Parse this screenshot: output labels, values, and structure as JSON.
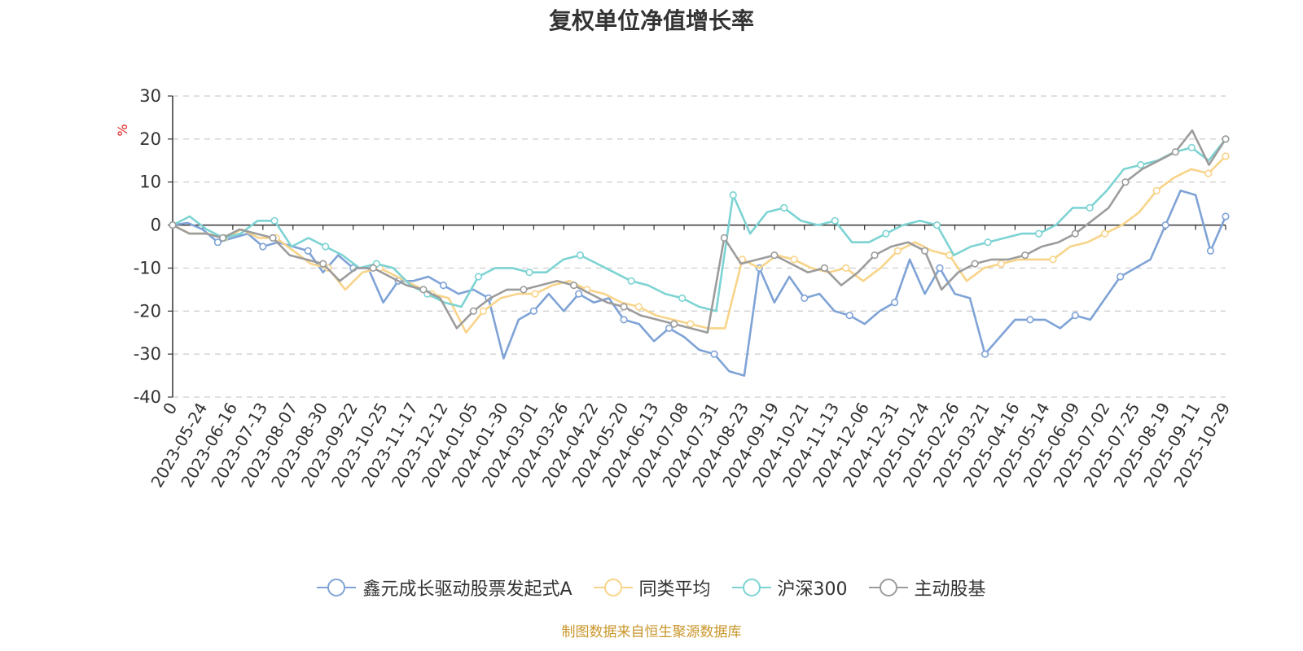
{
  "chart_data": {
    "type": "line",
    "title": "复权单位净值增长率",
    "ylabel": "%",
    "xlabel": "",
    "ylim": [
      -40,
      30
    ],
    "yticks": [
      "30",
      "20",
      "10",
      "0",
      "-10",
      "-20",
      "-30",
      "-40"
    ],
    "x_tick_labels": [
      "0",
      "2023-05-24",
      "2023-06-16",
      "2023-07-13",
      "2023-08-07",
      "2023-08-30",
      "2023-09-22",
      "2023-10-25",
      "2023-11-17",
      "2023-12-12",
      "2024-01-05",
      "2024-01-30",
      "2024-03-01",
      "2024-03-26",
      "2024-04-22",
      "2024-05-20",
      "2024-06-13",
      "2024-07-08",
      "2024-07-31",
      "2024-08-23",
      "2024-09-19",
      "2024-10-21",
      "2024-11-13",
      "2024-12-06",
      "2024-12-31",
      "2025-01-24",
      "2025-02-26",
      "2025-03-21",
      "2025-04-16",
      "2025-05-14",
      "2025-06-09",
      "2025-07-02",
      "2025-07-25",
      "2025-08-19",
      "2025-09-11",
      "2025-10-29"
    ],
    "grid": "horizontal-dashed",
    "legend_position": "bottom",
    "source": "制图数据来自恒生聚源数据库",
    "colors": {
      "axis": "#333333",
      "grid": "#cccccc",
      "ylabel": "#e02020",
      "source": "#c9962a"
    },
    "series": [
      {
        "name": "鑫元成长驱动股票发起式A",
        "color": "#7fa3d6",
        "values": [
          0,
          0.5,
          -1,
          -4,
          -3,
          -2,
          -5,
          -4,
          -5,
          -6,
          -11,
          -7,
          -10,
          -10,
          -18,
          -13,
          -13,
          -12,
          -14,
          -16,
          -15,
          -17,
          -31,
          -22,
          -20,
          -16,
          -20,
          -16,
          -18,
          -17,
          -22,
          -23,
          -27,
          -24,
          -26,
          -29,
          -30,
          -34,
          -35,
          -10,
          -18,
          -12,
          -17,
          -16,
          -20,
          -21,
          -23,
          -20,
          -18,
          -8,
          -16,
          -10,
          -16,
          -17,
          -30,
          -26,
          -22,
          -22,
          -22,
          -24,
          -21,
          -22,
          -17,
          -12,
          -10,
          -8,
          0,
          8,
          7,
          -6,
          2
        ]
      },
      {
        "name": "同类平均",
        "color": "#f8d48a",
        "values": [
          0,
          -2,
          -2,
          -3,
          -1,
          -3,
          -3,
          -6,
          -9,
          -10,
          -15,
          -11,
          -10,
          -12,
          -14,
          -16,
          -17,
          -25,
          -20,
          -17,
          -16,
          -16,
          -14,
          -13,
          -15,
          -16,
          -18,
          -19,
          -21,
          -22,
          -23,
          -24,
          -24,
          -8,
          -10,
          -7,
          -8,
          -10,
          -11,
          -10,
          -13,
          -10,
          -6,
          -4,
          -6,
          -7,
          -13,
          -10,
          -9,
          -8,
          -8,
          -8,
          -5,
          -4,
          -2,
          0,
          3,
          8,
          11,
          13,
          12,
          16
        ]
      },
      {
        "name": "沪深300",
        "color": "#7dd3d3",
        "values": [
          0,
          2,
          -1,
          -3,
          -2,
          1,
          1,
          -5,
          -3,
          -5,
          -7,
          -10,
          -9,
          -10,
          -14,
          -16,
          -18,
          -19,
          -12,
          -10,
          -10,
          -11,
          -11,
          -8,
          -7,
          -9,
          -11,
          -13,
          -14,
          -16,
          -17,
          -19,
          -20,
          7,
          -2,
          3,
          4,
          1,
          0,
          1,
          -4,
          -4,
          -2,
          0,
          1,
          0,
          -7,
          -5,
          -4,
          -3,
          -2,
          -2,
          0,
          4,
          4,
          8,
          13,
          14,
          15,
          17,
          18,
          15,
          20
        ]
      },
      {
        "name": "主动股基",
        "color": "#9c9c9c",
        "values": [
          0,
          -2,
          -2,
          -3,
          -1,
          -2,
          -3,
          -7,
          -8,
          -9,
          -13,
          -10,
          -10,
          -12,
          -14,
          -15,
          -17,
          -24,
          -20,
          -17,
          -15,
          -15,
          -14,
          -13,
          -14,
          -16,
          -18,
          -19,
          -21,
          -22,
          -23,
          -24,
          -25,
          -3,
          -9,
          -8,
          -7,
          -9,
          -11,
          -10,
          -14,
          -11,
          -7,
          -5,
          -4,
          -6,
          -15,
          -11,
          -9,
          -8,
          -8,
          -7,
          -5,
          -4,
          -2,
          1,
          4,
          10,
          13,
          15,
          17,
          22,
          14,
          20
        ]
      }
    ]
  }
}
